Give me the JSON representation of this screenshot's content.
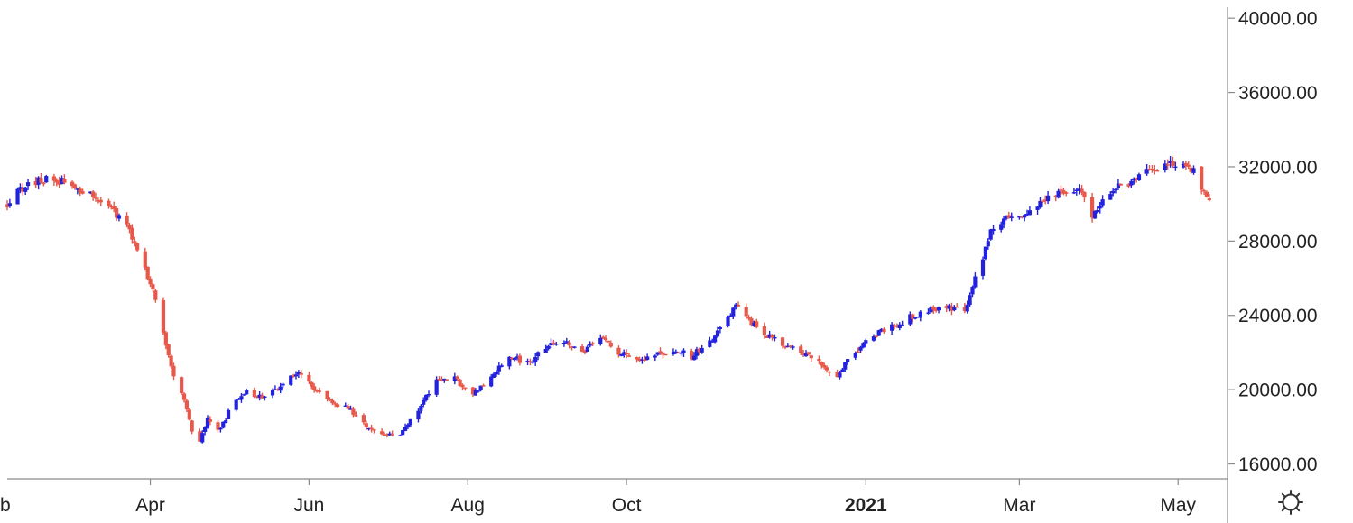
{
  "chart_data": {
    "type": "candlestick",
    "colors": {
      "up": "#2222dd",
      "down": "#e8584a",
      "axis": "#8a8a8a",
      "text": "#222222"
    },
    "y_axis": {
      "position": "right",
      "ylim": [
        15200,
        40300
      ],
      "ticks": [
        {
          "value": 16000,
          "label": "16000.00"
        },
        {
          "value": 20000,
          "label": "20000.00"
        },
        {
          "value": 24000,
          "label": "24000.00"
        },
        {
          "value": 28000,
          "label": "28000.00"
        },
        {
          "value": 32000,
          "label": "32000.00"
        },
        {
          "value": 36000,
          "label": "36000.00"
        },
        {
          "value": 40000,
          "label": "40000.00"
        }
      ]
    },
    "x_axis": {
      "xlim": [
        "2020-02-06",
        "2021-05-20"
      ],
      "ticks": [
        {
          "date": "2020-02-01",
          "label": "Feb",
          "bold": false
        },
        {
          "date": "2020-04-01",
          "label": "Apr",
          "bold": false
        },
        {
          "date": "2020-06-01",
          "label": "Jun",
          "bold": false
        },
        {
          "date": "2020-08-01",
          "label": "Aug",
          "bold": false
        },
        {
          "date": "2020-10-01",
          "label": "Oct",
          "bold": false
        },
        {
          "date": "2021-01-01",
          "label": "2021",
          "bold": true
        },
        {
          "date": "2021-03-01",
          "label": "Mar",
          "bold": false
        },
        {
          "date": "2021-05-01",
          "label": "May",
          "bold": false
        }
      ]
    },
    "close_anchors": [
      [
        "2020-02-06",
        29900
      ],
      [
        "2020-02-11",
        30800
      ],
      [
        "2020-02-17",
        31200
      ],
      [
        "2020-02-24",
        31400
      ],
      [
        "2020-03-02",
        30900
      ],
      [
        "2020-03-09",
        30600
      ],
      [
        "2020-03-13",
        30300
      ],
      [
        "2020-03-18",
        29500
      ],
      [
        "2020-03-23",
        28800
      ],
      [
        "2020-03-26",
        27800
      ],
      [
        "2020-03-30",
        26500
      ],
      [
        "2020-04-03",
        24800
      ],
      [
        "2020-04-07",
        22500
      ],
      [
        "2020-04-10",
        20800
      ],
      [
        "2020-04-14",
        19500
      ],
      [
        "2020-04-17",
        17700
      ],
      [
        "2020-04-20",
        17100
      ],
      [
        "2020-04-23",
        18500
      ],
      [
        "2020-04-28",
        17800
      ],
      [
        "2020-05-01",
        18800
      ],
      [
        "2020-05-07",
        19900
      ],
      [
        "2020-05-14",
        19600
      ],
      [
        "2020-05-21",
        20200
      ],
      [
        "2020-05-27",
        20900
      ],
      [
        "2020-06-02",
        20200
      ],
      [
        "2020-06-09",
        19300
      ],
      [
        "2020-06-16",
        19000
      ],
      [
        "2020-06-23",
        18000
      ],
      [
        "2020-06-30",
        17500
      ],
      [
        "2020-07-06",
        17600
      ],
      [
        "2020-07-13",
        19000
      ],
      [
        "2020-07-20",
        20500
      ],
      [
        "2020-07-27",
        20600
      ],
      [
        "2020-08-03",
        19800
      ],
      [
        "2020-08-10",
        20700
      ],
      [
        "2020-08-17",
        21800
      ],
      [
        "2020-08-24",
        21400
      ],
      [
        "2020-08-31",
        22300
      ],
      [
        "2020-09-07",
        22700
      ],
      [
        "2020-09-14",
        22000
      ],
      [
        "2020-09-21",
        22800
      ],
      [
        "2020-09-28",
        22000
      ],
      [
        "2020-10-05",
        21600
      ],
      [
        "2020-10-12",
        21800
      ],
      [
        "2020-10-19",
        22200
      ],
      [
        "2020-10-26",
        21800
      ],
      [
        "2020-11-02",
        22600
      ],
      [
        "2020-11-09",
        23800
      ],
      [
        "2020-11-12",
        24500
      ],
      [
        "2020-11-16",
        23800
      ],
      [
        "2020-11-23",
        23000
      ],
      [
        "2020-11-30",
        22400
      ],
      [
        "2020-12-07",
        22000
      ],
      [
        "2020-12-14",
        21400
      ],
      [
        "2020-12-21",
        20700
      ],
      [
        "2020-12-24",
        21500
      ],
      [
        "2020-12-31",
        22500
      ],
      [
        "2021-01-07",
        23200
      ],
      [
        "2021-01-14",
        23600
      ],
      [
        "2021-01-21",
        24100
      ],
      [
        "2021-01-28",
        24400
      ],
      [
        "2021-02-04",
        24400
      ],
      [
        "2021-02-08",
        24300
      ],
      [
        "2021-02-11",
        25500
      ],
      [
        "2021-02-15",
        27200
      ],
      [
        "2021-02-18",
        28600
      ],
      [
        "2021-02-22",
        29000
      ],
      [
        "2021-02-26",
        29400
      ],
      [
        "2021-03-04",
        29500
      ],
      [
        "2021-03-11",
        30300
      ],
      [
        "2021-03-18",
        30600
      ],
      [
        "2021-03-25",
        30700
      ],
      [
        "2021-03-29",
        29400
      ],
      [
        "2021-04-01",
        30000
      ],
      [
        "2021-04-06",
        30800
      ],
      [
        "2021-04-13",
        31100
      ],
      [
        "2021-04-20",
        31800
      ],
      [
        "2021-04-27",
        32100
      ],
      [
        "2021-05-03",
        32200
      ],
      [
        "2021-05-07",
        31800
      ],
      [
        "2021-05-11",
        30500
      ],
      [
        "2021-05-14",
        29800
      ],
      [
        "2021-05-17",
        31000
      ]
    ],
    "display_note": "Candles drawn between the anchor closes; the visible x span ends around mid-May 2021 per the axis ticks."
  },
  "controls": {
    "settings_icon": "gear-icon"
  }
}
